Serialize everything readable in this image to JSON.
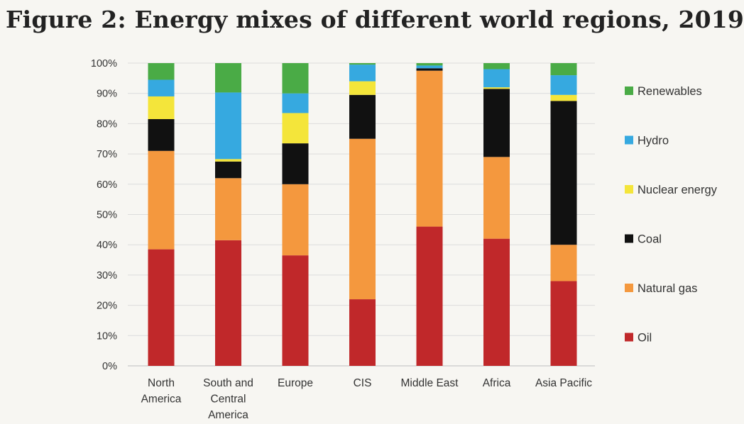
{
  "title": "Figure 2: Energy mixes of different world regions, 2019",
  "chart_data": {
    "type": "bar",
    "stacked": true,
    "title": "Figure 2: Energy mixes of different world regions, 2019",
    "xlabel": "",
    "ylabel": "",
    "ylim": [
      0,
      100
    ],
    "yticks": [
      0,
      10,
      20,
      30,
      40,
      50,
      60,
      70,
      80,
      90,
      100
    ],
    "ytick_labels": [
      "0%",
      "10%",
      "20%",
      "30%",
      "40%",
      "50%",
      "60%",
      "70%",
      "80%",
      "90%",
      "100%"
    ],
    "categories": [
      "North America",
      "South and Central America",
      "Europe",
      "CIS",
      "Middle East",
      "Africa",
      "Asia Pacific"
    ],
    "category_labels": [
      [
        "North",
        "America"
      ],
      [
        "South and",
        "Central",
        "America"
      ],
      [
        "Europe"
      ],
      [
        "CIS"
      ],
      [
        "Middle East"
      ],
      [
        "Africa"
      ],
      [
        "Asia Pacific"
      ]
    ],
    "legend_position": "right",
    "series": [
      {
        "name": "Oil",
        "color": "#c0282a",
        "values": [
          38.5,
          41.5,
          36.5,
          22,
          46,
          42,
          28
        ]
      },
      {
        "name": "Natural gas",
        "color": "#f4983e",
        "values": [
          32.5,
          20.5,
          23.5,
          53,
          51.5,
          27,
          12
        ]
      },
      {
        "name": "Coal",
        "color": "#111111",
        "values": [
          10.5,
          5.5,
          13.5,
          14.5,
          0.8,
          22.5,
          47.5
        ]
      },
      {
        "name": "Nuclear energy",
        "color": "#f4e53a",
        "values": [
          7.5,
          0.8,
          10,
          4.5,
          0,
          0.5,
          2
        ]
      },
      {
        "name": "Hydro",
        "color": "#36a9e0",
        "values": [
          5.5,
          22,
          6.5,
          5.5,
          0.9,
          6,
          6.5
        ]
      },
      {
        "name": "Renewables",
        "color": "#4aab46",
        "values": [
          5.5,
          9.7,
          10,
          0.5,
          0.8,
          2,
          4
        ]
      }
    ],
    "legend_order": [
      "Renewables",
      "Hydro",
      "Nuclear energy",
      "Coal",
      "Natural gas",
      "Oil"
    ]
  }
}
